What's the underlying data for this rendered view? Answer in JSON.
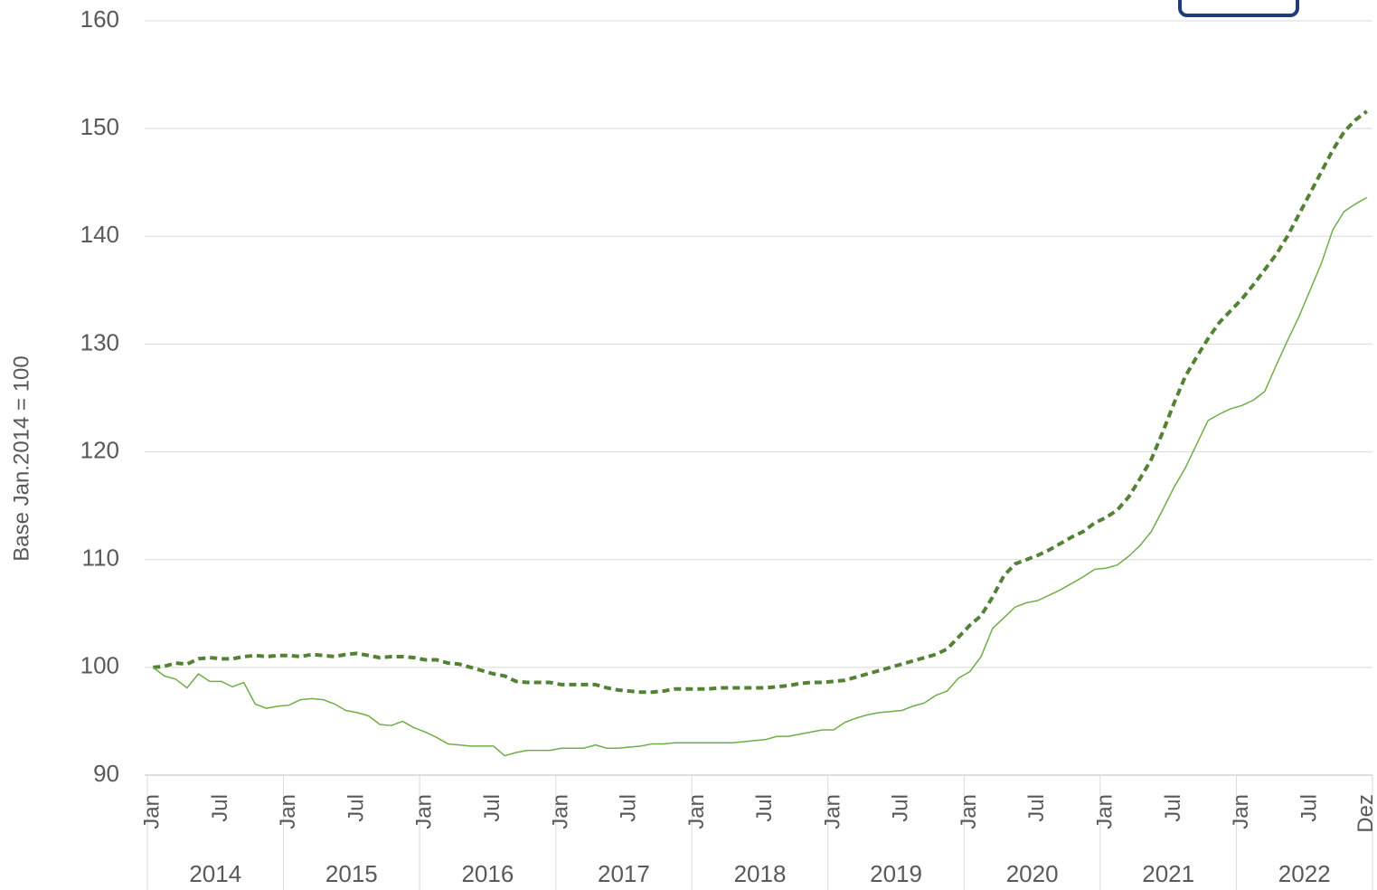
{
  "chart_data": {
    "type": "line",
    "ylabel": "Base Jan.2014 = 100",
    "ylim": [
      90,
      160
    ],
    "yticks": [
      90,
      100,
      110,
      120,
      130,
      140,
      150,
      160
    ],
    "grid": true,
    "years": [
      "2014",
      "2015",
      "2016",
      "2017",
      "2018",
      "2019",
      "2020",
      "2021",
      "2022"
    ],
    "categories": [
      "Jan",
      null,
      null,
      null,
      null,
      null,
      "Jul",
      null,
      null,
      null,
      null,
      null,
      "Jan",
      null,
      null,
      null,
      null,
      null,
      "Jul",
      null,
      null,
      null,
      null,
      null,
      "Jan",
      null,
      null,
      null,
      null,
      null,
      "Jul",
      null,
      null,
      null,
      null,
      null,
      "Jan",
      null,
      null,
      null,
      null,
      null,
      "Jul",
      null,
      null,
      null,
      null,
      null,
      "Jan",
      null,
      null,
      null,
      null,
      null,
      "Jul",
      null,
      null,
      null,
      null,
      null,
      "Jan",
      null,
      null,
      null,
      null,
      null,
      "Jul",
      null,
      null,
      null,
      null,
      null,
      "Jan",
      null,
      null,
      null,
      null,
      null,
      "Jul",
      null,
      null,
      null,
      null,
      null,
      "Jan",
      null,
      null,
      null,
      null,
      null,
      "Jul",
      null,
      null,
      null,
      null,
      null,
      "Jan",
      null,
      null,
      null,
      null,
      null,
      "Jul",
      null,
      null,
      null,
      null,
      "Dez"
    ],
    "series": [
      {
        "color": "#548235",
        "dashed": true,
        "width": 4,
        "values": [
          100,
          100.1,
          100.4,
          100.3,
          100.8,
          100.9,
          100.8,
          100.8,
          101.0,
          101.1,
          101.0,
          101.1,
          101.1,
          101.0,
          101.2,
          101.1,
          101.0,
          101.2,
          101.3,
          101.1,
          100.9,
          101.0,
          101.0,
          100.9,
          100.7,
          100.7,
          100.4,
          100.3,
          100.0,
          99.7,
          99.4,
          99.2,
          98.7,
          98.6,
          98.6,
          98.6,
          98.4,
          98.4,
          98.4,
          98.4,
          98.1,
          97.9,
          97.8,
          97.7,
          97.7,
          97.8,
          98.0,
          98.0,
          98.0,
          98.0,
          98.1,
          98.1,
          98.1,
          98.1,
          98.1,
          98.2,
          98.3,
          98.5,
          98.6,
          98.6,
          98.7,
          98.8,
          99.1,
          99.4,
          99.7,
          100.0,
          100.3,
          100.6,
          100.9,
          101.2,
          101.7,
          102.8,
          103.9,
          104.8,
          106.5,
          108.5,
          109.6,
          110.0,
          110.4,
          110.9,
          111.5,
          112.1,
          112.6,
          113.4,
          113.9,
          114.6,
          115.8,
          117.5,
          119.3,
          121.8,
          124.5,
          127.0,
          128.8,
          130.5,
          132.0,
          133.1,
          134.2,
          135.5,
          136.9,
          138.3,
          140.0,
          142.0,
          144.0,
          146.0,
          148.0,
          149.7,
          150.8,
          151.6
        ]
      },
      {
        "color": "#70ad47",
        "dashed": false,
        "width": 1.5,
        "values": [
          100,
          99.2,
          98.9,
          98.1,
          99.4,
          98.7,
          98.7,
          98.2,
          98.6,
          96.6,
          96.2,
          96.4,
          96.5,
          97.0,
          97.1,
          97.0,
          96.6,
          96.0,
          95.8,
          95.5,
          94.7,
          94.6,
          95.0,
          94.4,
          94.0,
          93.5,
          92.9,
          92.8,
          92.7,
          92.7,
          92.7,
          91.8,
          92.1,
          92.3,
          92.3,
          92.3,
          92.5,
          92.5,
          92.5,
          92.8,
          92.5,
          92.5,
          92.6,
          92.7,
          92.9,
          92.9,
          93.0,
          93.0,
          93.0,
          93.0,
          93.0,
          93.0,
          93.1,
          93.2,
          93.3,
          93.6,
          93.6,
          93.8,
          94.0,
          94.2,
          94.2,
          94.9,
          95.3,
          95.6,
          95.8,
          95.9,
          96.0,
          96.4,
          96.7,
          97.4,
          97.8,
          99.0,
          99.6,
          101.0,
          103.6,
          104.6,
          105.6,
          106.0,
          106.2,
          106.7,
          107.2,
          107.8,
          108.4,
          109.1,
          109.2,
          109.5,
          110.3,
          111.3,
          112.6,
          114.6,
          116.7,
          118.5,
          120.7,
          122.9,
          123.5,
          124.0,
          124.3,
          124.8,
          125.6,
          128.0,
          130.3,
          132.5,
          135.0,
          137.5,
          140.6,
          142.3,
          143.0,
          143.6
        ]
      }
    ]
  }
}
